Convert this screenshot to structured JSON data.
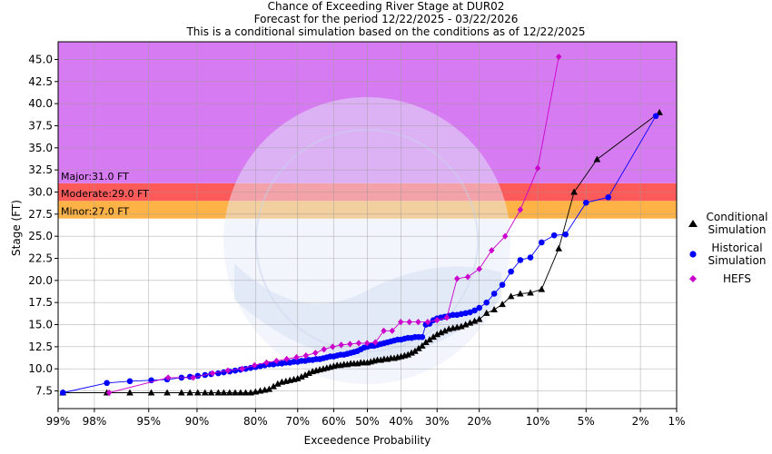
{
  "header": {
    "line1": "Chance of Exceeding River Stage at DUR02",
    "line2": "Forecast for the period 12/22/2025 - 03/22/2026",
    "line3": "This is a conditional simulation based on the conditions as of 12/22/2025"
  },
  "chart_data": {
    "type": "line",
    "title": "Chance of Exceeding River Stage at DUR02",
    "xlabel": "Exceedence Probability",
    "ylabel": "Stage (FT)",
    "xscale": "normal-probability",
    "xlim": [
      99,
      1
    ],
    "ylim": [
      5.5,
      47
    ],
    "x_ticks": [
      {
        "p": 99,
        "label": "99%"
      },
      {
        "p": 98,
        "label": "98%"
      },
      {
        "p": 95,
        "label": "95%"
      },
      {
        "p": 90,
        "label": "90%"
      },
      {
        "p": 80,
        "label": "80%"
      },
      {
        "p": 70,
        "label": "70%"
      },
      {
        "p": 60,
        "label": "60%"
      },
      {
        "p": 50,
        "label": "50%"
      },
      {
        "p": 40,
        "label": "40%"
      },
      {
        "p": 30,
        "label": "30%"
      },
      {
        "p": 20,
        "label": "20%"
      },
      {
        "p": 10,
        "label": "10%"
      },
      {
        "p": 5,
        "label": "5%"
      },
      {
        "p": 2,
        "label": "2%"
      },
      {
        "p": 1,
        "label": "1%"
      }
    ],
    "y_ticks": [
      {
        "v": 7.5,
        "label": "7.5"
      },
      {
        "v": 10,
        "label": "10.0"
      },
      {
        "v": 12.5,
        "label": "12.5"
      },
      {
        "v": 15,
        "label": "15.0"
      },
      {
        "v": 17.5,
        "label": "17.5"
      },
      {
        "v": 20,
        "label": "20.0"
      },
      {
        "v": 22.5,
        "label": "22.5"
      },
      {
        "v": 25,
        "label": "25.0"
      },
      {
        "v": 27.5,
        "label": "27.5"
      },
      {
        "v": 30,
        "label": "30.0"
      },
      {
        "v": 32.5,
        "label": "32.5"
      },
      {
        "v": 35,
        "label": "35.0"
      },
      {
        "v": 37.5,
        "label": "37.5"
      },
      {
        "v": 40,
        "label": "40.0"
      },
      {
        "v": 42.5,
        "label": "42.5"
      },
      {
        "v": 45,
        "label": "45.0"
      }
    ],
    "flood_bands": [
      {
        "name": "Minor",
        "label": "Minor:27.0 FT",
        "from": 27,
        "to": 29,
        "color": "#ffb347"
      },
      {
        "name": "Moderate",
        "label": "Moderate:29.0 FT",
        "from": 29,
        "to": 31,
        "color": "#ff5a5a"
      },
      {
        "name": "Major",
        "label": "Major:31.0 FT",
        "from": 31,
        "to": 47,
        "color": "#d77bf2"
      }
    ],
    "grid": true,
    "legend_position": "right",
    "series": [
      {
        "name": "Conditional Simulation",
        "color": "#000000",
        "marker": "triangle",
        "points": [
          [
            98.9,
            7.3
          ],
          [
            97.5,
            7.3
          ],
          [
            96.3,
            7.3
          ],
          [
            94.8,
            7.3
          ],
          [
            93.4,
            7.3
          ],
          [
            91.9,
            7.3
          ],
          [
            90.9,
            7.3
          ],
          [
            89.9,
            7.3
          ],
          [
            88.9,
            7.3
          ],
          [
            88,
            7.3
          ],
          [
            86.9,
            7.3
          ],
          [
            86,
            7.3
          ],
          [
            85,
            7.3
          ],
          [
            84,
            7.3
          ],
          [
            83,
            7.3
          ],
          [
            82,
            7.3
          ],
          [
            81,
            7.3
          ],
          [
            80,
            7.4
          ],
          [
            79,
            7.5
          ],
          [
            78,
            7.6
          ],
          [
            77,
            7.7
          ],
          [
            76,
            8.0
          ],
          [
            75,
            8.3
          ],
          [
            74,
            8.5
          ],
          [
            73,
            8.6
          ],
          [
            72,
            8.7
          ],
          [
            71,
            8.8
          ],
          [
            70,
            8.9
          ],
          [
            69,
            9.1
          ],
          [
            68,
            9.3
          ],
          [
            67,
            9.5
          ],
          [
            66,
            9.7
          ],
          [
            65,
            9.8
          ],
          [
            64,
            9.9
          ],
          [
            63,
            10.0
          ],
          [
            62,
            10.1
          ],
          [
            61,
            10.2
          ],
          [
            60,
            10.3
          ],
          [
            59,
            10.4
          ],
          [
            58,
            10.4
          ],
          [
            57,
            10.5
          ],
          [
            56,
            10.5
          ],
          [
            55,
            10.6
          ],
          [
            54,
            10.6
          ],
          [
            53,
            10.6
          ],
          [
            52,
            10.7
          ],
          [
            51,
            10.7
          ],
          [
            50,
            10.7
          ],
          [
            49,
            10.8
          ],
          [
            48,
            10.9
          ],
          [
            47,
            11.0
          ],
          [
            46,
            11.0
          ],
          [
            45,
            11.1
          ],
          [
            44,
            11.1
          ],
          [
            43,
            11.2
          ],
          [
            42,
            11.2
          ],
          [
            41,
            11.3
          ],
          [
            40,
            11.4
          ],
          [
            39,
            11.5
          ],
          [
            38,
            11.6
          ],
          [
            37,
            11.8
          ],
          [
            36,
            12.0
          ],
          [
            35,
            12.3
          ],
          [
            34,
            12.6
          ],
          [
            33,
            13.0
          ],
          [
            32,
            13.3
          ],
          [
            31,
            13.6
          ],
          [
            30,
            13.9
          ],
          [
            29,
            14.1
          ],
          [
            28,
            14.3
          ],
          [
            27,
            14.5
          ],
          [
            26,
            14.6
          ],
          [
            25,
            14.7
          ],
          [
            24,
            14.8
          ],
          [
            23,
            15.0
          ],
          [
            22,
            15.2
          ],
          [
            21,
            15.4
          ],
          [
            20,
            15.6
          ],
          [
            18.5,
            16.3
          ],
          [
            17,
            16.7
          ],
          [
            15.5,
            17.3
          ],
          [
            14,
            18.2
          ],
          [
            12.5,
            18.5
          ],
          [
            11,
            18.6
          ],
          [
            9.5,
            19.0
          ],
          [
            7.5,
            23.6
          ],
          [
            6.0,
            30.0
          ],
          [
            4.2,
            33.7
          ],
          [
            1.4,
            39.0
          ]
        ]
      },
      {
        "name": "Historical Simulation",
        "color": "#0000ff",
        "marker": "circle",
        "points": [
          [
            98.9,
            7.3
          ],
          [
            97.5,
            8.4
          ],
          [
            96.3,
            8.6
          ],
          [
            94.8,
            8.7
          ],
          [
            93.4,
            8.8
          ],
          [
            91.9,
            9.0
          ],
          [
            90.9,
            9.1
          ],
          [
            89.9,
            9.2
          ],
          [
            88.9,
            9.3
          ],
          [
            88,
            9.4
          ],
          [
            86.9,
            9.5
          ],
          [
            86,
            9.6
          ],
          [
            85,
            9.7
          ],
          [
            84,
            9.8
          ],
          [
            83,
            9.9
          ],
          [
            82,
            10.0
          ],
          [
            81,
            10.1
          ],
          [
            80,
            10.2
          ],
          [
            79,
            10.3
          ],
          [
            78,
            10.4
          ],
          [
            77,
            10.5
          ],
          [
            76,
            10.5
          ],
          [
            75,
            10.6
          ],
          [
            74,
            10.6
          ],
          [
            73,
            10.7
          ],
          [
            72,
            10.7
          ],
          [
            71,
            10.8
          ],
          [
            70,
            10.8
          ],
          [
            69,
            10.9
          ],
          [
            68,
            10.9
          ],
          [
            67,
            11.0
          ],
          [
            66,
            11.0
          ],
          [
            65,
            11.1
          ],
          [
            64,
            11.1
          ],
          [
            63,
            11.2
          ],
          [
            62,
            11.3
          ],
          [
            61,
            11.4
          ],
          [
            60,
            11.4
          ],
          [
            59,
            11.5
          ],
          [
            58,
            11.6
          ],
          [
            57,
            11.6
          ],
          [
            56,
            11.7
          ],
          [
            55,
            11.8
          ],
          [
            54,
            11.9
          ],
          [
            53,
            12.0
          ],
          [
            52,
            12.2
          ],
          [
            51,
            12.4
          ],
          [
            50,
            12.5
          ],
          [
            49,
            12.6
          ],
          [
            48,
            12.6
          ],
          [
            47,
            12.7
          ],
          [
            46,
            12.8
          ],
          [
            45,
            12.9
          ],
          [
            44,
            13.0
          ],
          [
            43,
            13.1
          ],
          [
            42,
            13.2
          ],
          [
            41,
            13.3
          ],
          [
            40,
            13.3
          ],
          [
            39,
            13.4
          ],
          [
            38,
            13.5
          ],
          [
            37,
            13.5
          ],
          [
            36,
            13.6
          ],
          [
            35,
            13.6
          ],
          [
            34,
            13.6
          ],
          [
            33,
            15.0
          ],
          [
            32,
            15.1
          ],
          [
            31,
            15.5
          ],
          [
            30,
            15.7
          ],
          [
            29,
            15.8
          ],
          [
            28,
            15.9
          ],
          [
            27,
            16.0
          ],
          [
            26,
            16.1
          ],
          [
            25,
            16.1
          ],
          [
            24,
            16.2
          ],
          [
            23,
            16.3
          ],
          [
            22,
            16.4
          ],
          [
            21,
            16.6
          ],
          [
            20,
            16.9
          ],
          [
            18.5,
            17.5
          ],
          [
            17,
            18.5
          ],
          [
            15.5,
            19.5
          ],
          [
            14,
            21.0
          ],
          [
            12.5,
            22.3
          ],
          [
            11,
            22.6
          ],
          [
            9.5,
            24.3
          ],
          [
            8.0,
            25.1
          ],
          [
            6.8,
            25.2
          ],
          [
            5.0,
            28.8
          ],
          [
            3.5,
            29.4
          ],
          [
            1.5,
            38.6
          ]
        ]
      },
      {
        "name": "HEFS",
        "color": "#cc00cc",
        "marker": "diamond",
        "points": [
          [
            97.4,
            7.3
          ],
          [
            93.3,
            9.0
          ],
          [
            90.5,
            9.0
          ],
          [
            87.8,
            9.5
          ],
          [
            85.3,
            9.8
          ],
          [
            82.7,
            10.0
          ],
          [
            80.2,
            10.4
          ],
          [
            77.6,
            10.7
          ],
          [
            75.3,
            10.9
          ],
          [
            72.8,
            11.1
          ],
          [
            70.3,
            11.3
          ],
          [
            67.8,
            11.5
          ],
          [
            65.2,
            11.8
          ],
          [
            62.8,
            12.2
          ],
          [
            60.3,
            12.5
          ],
          [
            57.8,
            12.7
          ],
          [
            55.2,
            12.8
          ],
          [
            52.6,
            12.9
          ],
          [
            50.1,
            12.9
          ],
          [
            47.6,
            13.0
          ],
          [
            45.1,
            14.3
          ],
          [
            42.6,
            14.3
          ],
          [
            40.1,
            15.3
          ],
          [
            37.6,
            15.3
          ],
          [
            35.1,
            15.3
          ],
          [
            32.5,
            15.3
          ],
          [
            30.0,
            15.5
          ],
          [
            27.5,
            15.8
          ],
          [
            25.0,
            20.2
          ],
          [
            22.5,
            20.4
          ],
          [
            20.0,
            21.3
          ],
          [
            17.5,
            23.4
          ],
          [
            15.0,
            25.0
          ],
          [
            12.5,
            28.0
          ],
          [
            10.0,
            32.7
          ],
          [
            7.5,
            45.3
          ]
        ]
      }
    ]
  },
  "legend": {
    "conditional": "Conditional Simulation",
    "historical": "Historical Simulation",
    "hefs": "HEFS"
  }
}
